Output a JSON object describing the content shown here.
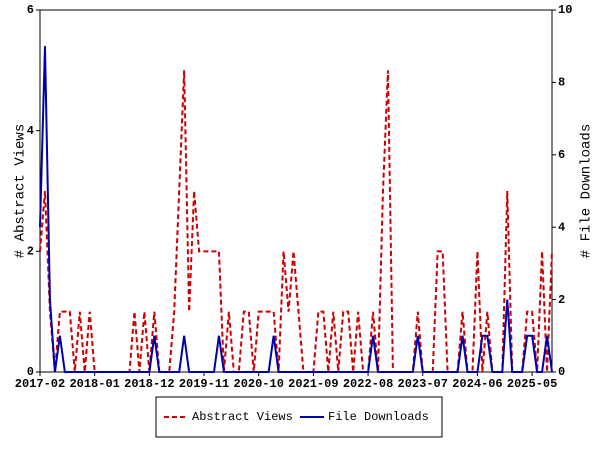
{
  "chart_data": {
    "type": "line",
    "x": [
      "2017-02",
      "2017-03",
      "2017-04",
      "2017-05",
      "2017-06",
      "2017-07",
      "2017-08",
      "2017-09",
      "2017-10",
      "2017-11",
      "2017-12",
      "2018-01",
      "2018-02",
      "2018-03",
      "2018-04",
      "2018-05",
      "2018-06",
      "2018-07",
      "2018-08",
      "2018-09",
      "2018-10",
      "2018-11",
      "2018-12",
      "2019-01",
      "2019-02",
      "2019-03",
      "2019-04",
      "2019-05",
      "2019-06",
      "2019-07",
      "2019-08",
      "2019-09",
      "2019-10",
      "2019-11",
      "2019-12",
      "2020-01",
      "2020-02",
      "2020-03",
      "2020-04",
      "2020-05",
      "2020-06",
      "2020-07",
      "2020-08",
      "2020-09",
      "2020-10",
      "2020-11",
      "2020-12",
      "2021-01",
      "2021-02",
      "2021-03",
      "2021-04",
      "2021-05",
      "2021-06",
      "2021-07",
      "2021-08",
      "2021-09",
      "2021-10",
      "2021-11",
      "2021-12",
      "2022-01",
      "2022-02",
      "2022-03",
      "2022-04",
      "2022-05",
      "2022-06",
      "2022-07",
      "2022-08",
      "2022-09",
      "2022-10",
      "2022-11",
      "2022-12",
      "2023-01",
      "2023-02",
      "2023-03",
      "2023-04",
      "2023-05",
      "2023-06",
      "2023-07",
      "2023-08",
      "2023-09",
      "2023-10",
      "2023-11",
      "2023-12",
      "2024-01",
      "2024-02",
      "2024-03",
      "2024-04",
      "2024-05",
      "2024-06",
      "2024-07",
      "2024-08",
      "2024-09",
      "2024-10",
      "2024-11",
      "2024-12",
      "2025-01",
      "2025-02",
      "2025-03",
      "2025-04",
      "2025-05",
      "2025-06",
      "2025-07",
      "2025-08",
      "2025-09"
    ],
    "xticks": [
      "2017-02",
      "2018-01",
      "2018-12",
      "2019-11",
      "2020-10",
      "2021-09",
      "2022-08",
      "2023-07",
      "2024-06",
      "2025-05"
    ],
    "ylabel": "# Abstract Views",
    "y2label": "# File Downloads",
    "ylim": [
      0,
      6
    ],
    "yticks": [
      0,
      2,
      4,
      6
    ],
    "y2lim": [
      0,
      10
    ],
    "y2ticks": [
      0,
      2,
      4,
      6,
      8,
      10
    ],
    "series": [
      {
        "name": "Abstract Views",
        "color": "#cc0000",
        "dashed": true,
        "axis": "y",
        "values": [
          2,
          3,
          1,
          0,
          1,
          1,
          1,
          0,
          1,
          0,
          1,
          0,
          0,
          0,
          0,
          0,
          0,
          0,
          0,
          1,
          0,
          1,
          0,
          1,
          0,
          0,
          0,
          1,
          3,
          5,
          1,
          3,
          2,
          2,
          2,
          2,
          2,
          0,
          1,
          0,
          0,
          1,
          1,
          0,
          1,
          1,
          1,
          1,
          0,
          2,
          1,
          2,
          1,
          0,
          0,
          0,
          1,
          1,
          0,
          1,
          0,
          1,
          1,
          0,
          1,
          0,
          0,
          1,
          0,
          3,
          5,
          0,
          0,
          0,
          0,
          0,
          1,
          0,
          0,
          0,
          2,
          2,
          0,
          0,
          0,
          1,
          0,
          0,
          2,
          0,
          1,
          0,
          0,
          0,
          3,
          0,
          0,
          0,
          1,
          1,
          0,
          2,
          0,
          2
        ]
      },
      {
        "name": "File Downloads",
        "color": "#0000aa",
        "dashed": false,
        "axis": "y2",
        "values": [
          4,
          9,
          2,
          0,
          1,
          0,
          0,
          0,
          0,
          0,
          0,
          0,
          0,
          0,
          0,
          0,
          0,
          0,
          0,
          0,
          0,
          0,
          0,
          1,
          0,
          0,
          0,
          0,
          0,
          1,
          0,
          0,
          0,
          0,
          0,
          0,
          1,
          0,
          0,
          0,
          0,
          0,
          0,
          0,
          0,
          0,
          0,
          1,
          0,
          0,
          0,
          0,
          0,
          0,
          0,
          0,
          0,
          0,
          0,
          0,
          0,
          0,
          0,
          0,
          0,
          0,
          0,
          1,
          0,
          0,
          0,
          0,
          0,
          0,
          0,
          0,
          1,
          0,
          0,
          0,
          0,
          0,
          0,
          0,
          0,
          1,
          0,
          0,
          0,
          1,
          1,
          0,
          0,
          0,
          2,
          0,
          0,
          0,
          1,
          1,
          0,
          0,
          1,
          0
        ]
      }
    ]
  }
}
